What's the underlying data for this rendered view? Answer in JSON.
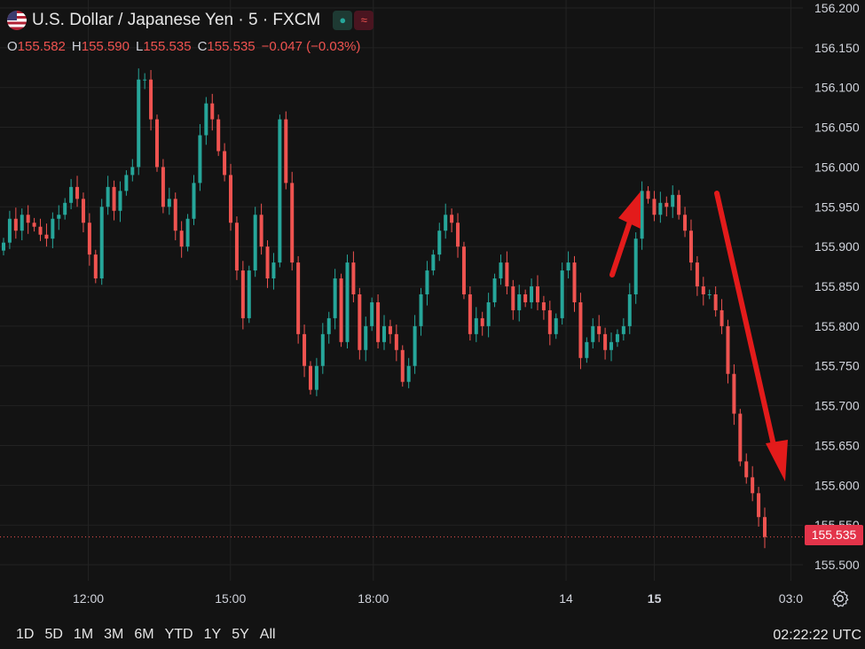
{
  "header": {
    "symbol_title": "U.S. Dollar / Japanese Yen · 5 · FXCM",
    "ohlc": {
      "o_label": "O",
      "o_value": "155.582",
      "h_label": "H",
      "h_value": "155.590",
      "l_label": "L",
      "l_value": "155.535",
      "c_label": "C",
      "c_value": "155.535",
      "change": "−0.047 (−0.03%)"
    }
  },
  "last_price_label": "155.535",
  "time_ranges": [
    "1D",
    "5D",
    "1M",
    "3M",
    "6M",
    "YTD",
    "1Y",
    "5Y",
    "All"
  ],
  "clock": "02:22:22 UTC",
  "colors": {
    "up": "#26a69a",
    "down": "#ef5350",
    "arrow": "#e31b1b",
    "background": "#131313",
    "price_tag": "#e3344a"
  },
  "chart_data": {
    "type": "candlestick",
    "title": "U.S. Dollar / Japanese Yen · 5 · FXCM",
    "ylim": [
      155.48,
      156.21
    ],
    "y_ticks": [
      "155.500",
      "155.550",
      "155.600",
      "155.650",
      "155.700",
      "155.750",
      "155.800",
      "155.850",
      "155.900",
      "155.950",
      "156.000",
      "156.050",
      "156.100",
      "156.150",
      "156.200"
    ],
    "x_ticks": [
      "12:00",
      "15:00",
      "18:00",
      "14",
      "15",
      "03:0"
    ],
    "grid": true,
    "last_price": 155.535,
    "series": [
      {
        "values": [
          155.905,
          155.935,
          155.92,
          155.94,
          155.93,
          155.925,
          155.915,
          155.91,
          155.935,
          155.94,
          155.955,
          155.975,
          155.96,
          155.93,
          155.89,
          155.86,
          155.95,
          155.975,
          155.945,
          155.97,
          155.99,
          156.0,
          156.11,
          156.11,
          156.06,
          156.0,
          155.95,
          155.96,
          155.92,
          155.9,
          155.935,
          155.98,
          156.04,
          156.08,
          156.06,
          156.02,
          155.99,
          155.93,
          155.87,
          155.81,
          155.87,
          155.94,
          155.9,
          155.86,
          155.88,
          156.06,
          155.98,
          155.88,
          155.79,
          155.75,
          155.72,
          155.75,
          155.79,
          155.81,
          155.86,
          155.78,
          155.88,
          155.84,
          155.77,
          155.8,
          155.83,
          155.78,
          155.8,
          155.79,
          155.77,
          155.73,
          155.75,
          155.8,
          155.84,
          155.87,
          155.89,
          155.92,
          155.94,
          155.93,
          155.9,
          155.84,
          155.79,
          155.81,
          155.8,
          155.83,
          155.86,
          155.88,
          155.85,
          155.82,
          155.84,
          155.83,
          155.85,
          155.83,
          155.82,
          155.79,
          155.81,
          155.87,
          155.88,
          155.83,
          155.76,
          155.78,
          155.8,
          155.79,
          155.77,
          155.78,
          155.79,
          155.8,
          155.84,
          155.91,
          155.97,
          155.96,
          155.94,
          155.955,
          155.95,
          155.965,
          155.94,
          155.92,
          155.88,
          155.85,
          155.84,
          155.84,
          155.82,
          155.8,
          155.74,
          155.69,
          155.63,
          155.61,
          155.59,
          155.56,
          155.535
        ]
      }
    ]
  }
}
